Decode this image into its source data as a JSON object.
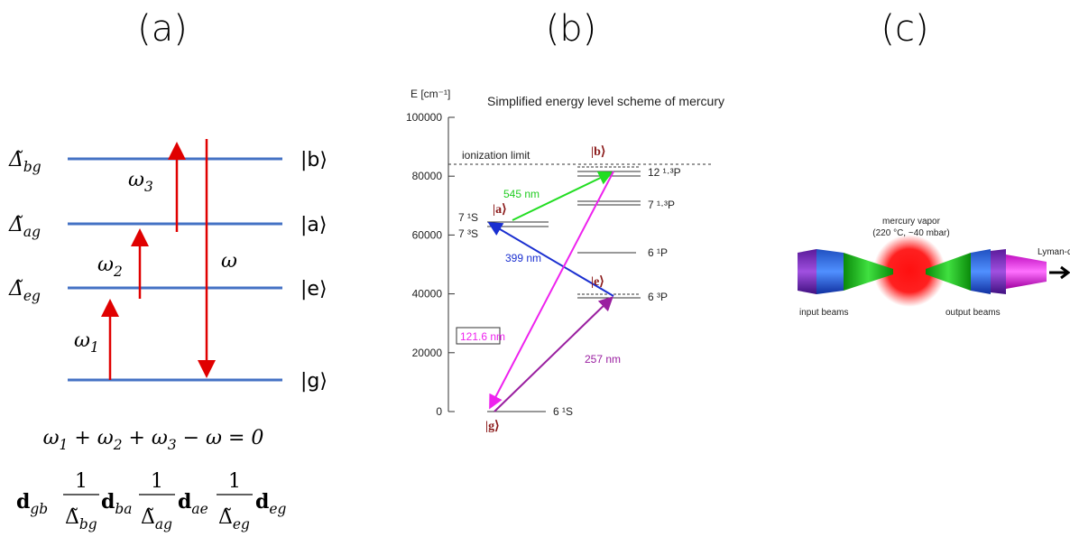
{
  "panel_a": {
    "label": "(a)",
    "levels": [
      {
        "name": "|b⟩",
        "detuning": {
          "t": "Δ̃",
          "sub": "bg"
        }
      },
      {
        "name": "|a⟩",
        "detuning": {
          "t": "Δ̃",
          "sub": "ag"
        }
      },
      {
        "name": "|e⟩",
        "detuning": {
          "t": "Δ̃",
          "sub": "eg"
        }
      },
      {
        "name": "|g⟩"
      }
    ],
    "fields": [
      {
        "t": "ω",
        "sub": "3"
      },
      {
        "t": "ω",
        "sub": "2"
      },
      {
        "t": "ω"
      },
      {
        "t": "ω",
        "sub": "1"
      }
    ],
    "energy_conservation": [
      {
        "t": "ω",
        "sub": "1"
      },
      {
        "t": " + ω",
        "sub": "2"
      },
      {
        "t": " + ω",
        "sub": "3"
      },
      {
        "t": " − ω = 0"
      }
    ],
    "amplitude": [
      {
        "t": "d",
        "sub": "gb"
      },
      {
        "num": "1",
        "den": "Δ̃",
        "sub": "bg"
      },
      {
        "t": "d",
        "sub": "ba"
      },
      {
        "num": "1",
        "den": "Δ̃",
        "sub": "ag"
      },
      {
        "t": "d",
        "sub": "ae"
      },
      {
        "num": "1",
        "den": "Δ̃",
        "sub": "eg"
      },
      {
        "t": "d",
        "sub": "eg"
      }
    ]
  },
  "panel_b": {
    "label": "(b)",
    "title": "Simplified energy level scheme of mercury",
    "axis_label": "E [cm⁻¹]",
    "yticks": [
      "100000",
      "80000",
      "60000",
      "40000",
      "20000",
      "0"
    ],
    "ionization_limit": "ionization limit",
    "levels": [
      "12 ¹·³P",
      "7 ¹·³P",
      "6 ¹P",
      "6 ³P",
      "6 ¹S",
      "7 ¹S",
      "7 ³S"
    ],
    "states": [
      "|b⟩",
      "|a⟩",
      "|e⟩",
      "|g⟩"
    ],
    "transitions": [
      "545 nm",
      "399 nm",
      "257 nm",
      "121.6 nm"
    ]
  },
  "panel_c": {
    "label": "(c)",
    "cell": "mercury vapor",
    "cell_conditions": "(220 °C, ~40 mbar)",
    "output": "Lyman-α",
    "input_beams": "input beams",
    "output_beams": "output beams"
  }
}
